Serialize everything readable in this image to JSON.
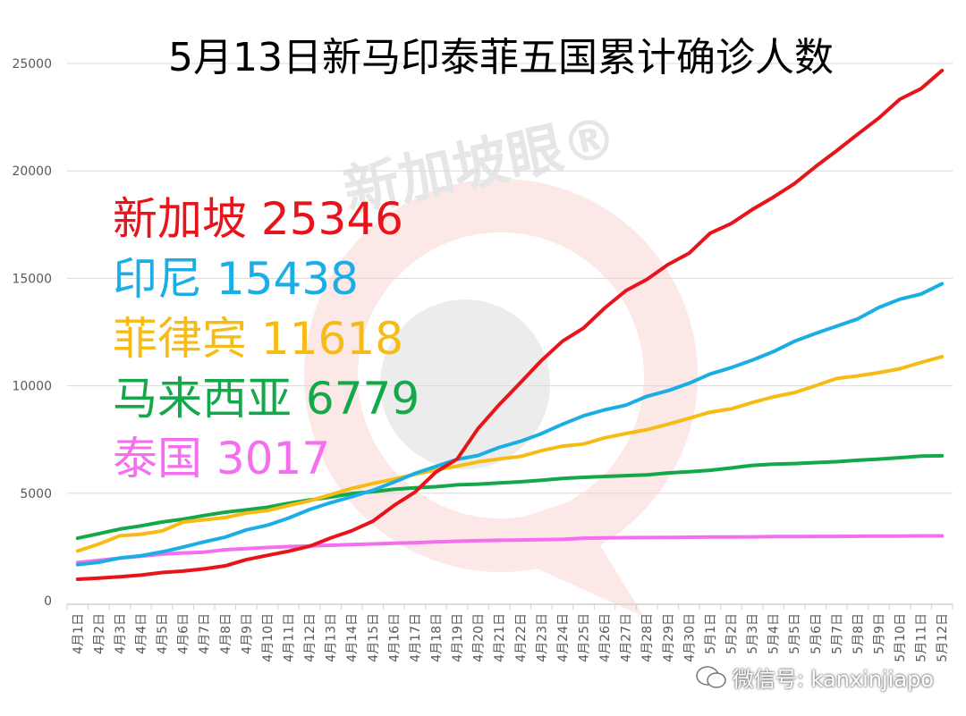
{
  "chart_data": {
    "type": "line",
    "title": "5月13日新马印泰菲五国累计确诊人数",
    "xlabel": "",
    "ylabel": "",
    "ylim": [
      0,
      25000
    ],
    "yticks": [
      "0",
      "5000",
      "10000",
      "15000",
      "20000",
      "25000"
    ],
    "grid": true,
    "legend_position": "left",
    "categories": [
      "4月1日",
      "4月2日",
      "4月3日",
      "4月4日",
      "4月5日",
      "4月6日",
      "4月7日",
      "4月8日",
      "4月9日",
      "4月10日",
      "4月11日",
      "4月12日",
      "4月13日",
      "4月14日",
      "4月15日",
      "4月16日",
      "4月17日",
      "4月18日",
      "4月19日",
      "4月20日",
      "4月21日",
      "4月22日",
      "4月23日",
      "4月24日",
      "4月25日",
      "4月26日",
      "4月27日",
      "4月28日",
      "4月29日",
      "4月30日",
      "5月1日",
      "5月2日",
      "5月3日",
      "5月4日",
      "5月5日",
      "5月6日",
      "5月7日",
      "5月8日",
      "5月9日",
      "5月10日",
      "5月11日",
      "5月12日"
    ],
    "series": [
      {
        "name": "新加坡",
        "label": "新加坡 25346",
        "color": "#e8141b",
        "values": [
          1000,
          1049,
          1114,
          1189,
          1309,
          1375,
          1481,
          1623,
          1910,
          2108,
          2299,
          2532,
          2918,
          3252,
          3699,
          4427,
          5050,
          5992,
          6588,
          8014,
          9125,
          10141,
          11178,
          12075,
          12693,
          13624,
          14423,
          14951,
          15641,
          16169,
          17101,
          17548,
          18205,
          18778,
          19410,
          20198,
          20939,
          21707,
          22460,
          23336,
          23822,
          24671
        ]
      },
      {
        "name": "印尼",
        "label": "印尼 15438",
        "color": "#1aaee5",
        "values": [
          1677,
          1790,
          1986,
          2092,
          2273,
          2491,
          2738,
          2956,
          3293,
          3512,
          3842,
          4241,
          4557,
          4839,
          5136,
          5516,
          5923,
          6248,
          6575,
          6760,
          7135,
          7418,
          7775,
          8211,
          8607,
          8882,
          9096,
          9511,
          9771,
          10118,
          10551,
          10843,
          11192,
          11587,
          12071,
          12438,
          12776,
          13112,
          13645,
          14032,
          14265,
          14749
        ]
      },
      {
        "name": "菲律宾",
        "label": "菲律宾 11618",
        "color": "#f6bb15",
        "values": [
          2311,
          2633,
          3018,
          3094,
          3246,
          3660,
          3764,
          3870,
          4076,
          4195,
          4428,
          4648,
          4932,
          5223,
          5453,
          5660,
          5878,
          6087,
          6259,
          6459,
          6599,
          6710,
          6981,
          7192,
          7294,
          7579,
          7777,
          7958,
          8212,
          8488,
          8772,
          8928,
          9223,
          9485,
          9684,
          10004,
          10343,
          10463,
          10610,
          10794,
          11086,
          11350
        ]
      },
      {
        "name": "马来西亚",
        "label": "马来西亚 6779",
        "color": "#13a84a",
        "values": [
          2908,
          3116,
          3333,
          3483,
          3662,
          3793,
          3963,
          4119,
          4228,
          4346,
          4530,
          4683,
          4817,
          4987,
          5072,
          5182,
          5251,
          5305,
          5389,
          5425,
          5482,
          5532,
          5603,
          5691,
          5742,
          5780,
          5820,
          5851,
          5945,
          6002,
          6071,
          6176,
          6298,
          6353,
          6383,
          6428,
          6467,
          6535,
          6589,
          6656,
          6726,
          6742
        ]
      },
      {
        "name": "泰国",
        "label": "泰国 3017",
        "color": "#f46ff0",
        "values": [
          1771,
          1875,
          1978,
          2067,
          2169,
          2220,
          2258,
          2369,
          2423,
          2473,
          2518,
          2551,
          2579,
          2613,
          2643,
          2672,
          2700,
          2733,
          2765,
          2792,
          2811,
          2826,
          2839,
          2854,
          2907,
          2922,
          2931,
          2938,
          2947,
          2954,
          2960,
          2966,
          2969,
          2987,
          2988,
          2989,
          2992,
          3000,
          3004,
          3009,
          3015,
          3017
        ]
      }
    ]
  },
  "watermark": {
    "logo_text": "新加坡眼®"
  },
  "footer": {
    "wechat_id": "微信号: kanxinjiapo"
  }
}
